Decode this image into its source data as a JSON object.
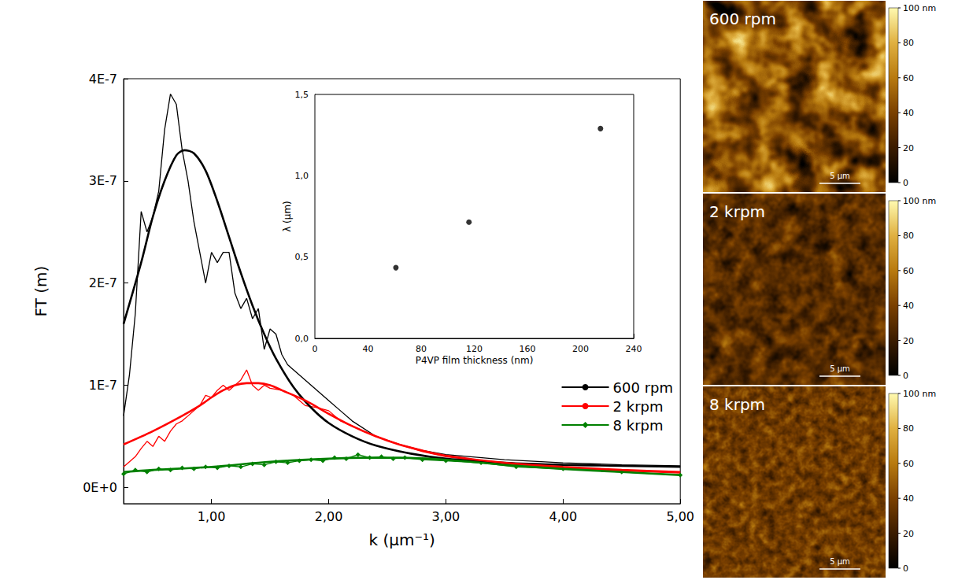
{
  "chart_data": [
    {
      "type": "line",
      "xlabel": "k (μm⁻¹)",
      "ylabel": "FT (m)",
      "xlim": [
        0.25,
        5.0
      ],
      "xticks": [
        {
          "value": 1,
          "label": "1,00"
        },
        {
          "value": 2,
          "label": "2,00"
        },
        {
          "value": 3,
          "label": "3,00"
        },
        {
          "value": 4,
          "label": "4,00"
        },
        {
          "value": 5,
          "label": "5,00"
        }
      ],
      "ylim": [
        -1.6e-08,
        4e-07
      ],
      "yticks": [
        {
          "value": 0,
          "label": "0E+0"
        },
        {
          "value": 1e-07,
          "label": "1E-7"
        },
        {
          "value": 2e-07,
          "label": "2E-7"
        },
        {
          "value": 3e-07,
          "label": "3E-7"
        },
        {
          "value": 4e-07,
          "label": "4E-7"
        }
      ],
      "grid": false,
      "legend": "lower right",
      "series": [
        {
          "name": "600 rpm",
          "color": "#000000",
          "marker": "none",
          "x": [
            0.25,
            0.3,
            0.35,
            0.4,
            0.45,
            0.5,
            0.55,
            0.6,
            0.65,
            0.7,
            0.75,
            0.8,
            0.85,
            0.9,
            0.95,
            1.0,
            1.05,
            1.1,
            1.15,
            1.2,
            1.25,
            1.3,
            1.35,
            1.4,
            1.45,
            1.5,
            1.55,
            1.6,
            1.65,
            1.7,
            1.75,
            1.8,
            1.85,
            1.9,
            2.0,
            2.1,
            2.2,
            2.4,
            2.6,
            2.8,
            3.0,
            3.5,
            4.0,
            4.5,
            5.0
          ],
          "values": [
            7e-08,
            1.1e-07,
            1.7e-07,
            2.7e-07,
            2.5e-07,
            2.65e-07,
            2.9e-07,
            3.5e-07,
            3.85e-07,
            3.75e-07,
            3.3e-07,
            3e-07,
            2.6e-07,
            2.3e-07,
            2e-07,
            2.3e-07,
            2.2e-07,
            2.3e-07,
            2.3e-07,
            1.9e-07,
            1.75e-07,
            1.85e-07,
            1.65e-07,
            1.75e-07,
            1.35e-07,
            1.55e-07,
            1.5e-07,
            1.3e-07,
            1.2e-07,
            1.15e-07,
            1.1e-07,
            1.05e-07,
            1e-07,
            9.5e-08,
            8.5e-08,
            7.5e-08,
            6.5e-08,
            5e-08,
            4.2e-08,
            3.6e-08,
            3.2e-08,
            2.7e-08,
            2.4e-08,
            2.2e-08,
            2.1e-08
          ],
          "fit_x": [
            0.25,
            0.4,
            0.5,
            0.6,
            0.7,
            0.77,
            0.85,
            0.95,
            1.05,
            1.15,
            1.25,
            1.35,
            1.45,
            1.55,
            1.7,
            1.85,
            2.0,
            2.2,
            2.4,
            2.7,
            3.0,
            3.5,
            4.0,
            4.5,
            5.0
          ],
          "fit_values": [
            1.6e-07,
            2.2e-07,
            2.65e-07,
            3e-07,
            3.25e-07,
            3.3e-07,
            3.27e-07,
            3.1e-07,
            2.8e-07,
            2.45e-07,
            2.1e-07,
            1.78e-07,
            1.5e-07,
            1.26e-07,
            9.8e-08,
            7.8e-08,
            6.3e-08,
            5e-08,
            4.1e-08,
            3.3e-08,
            2.8e-08,
            2.4e-08,
            2.2e-08,
            2.1e-08,
            2e-08
          ]
        },
        {
          "name": "2 krpm",
          "color": "#ff0000",
          "marker": "none",
          "x": [
            0.25,
            0.3,
            0.35,
            0.4,
            0.45,
            0.5,
            0.55,
            0.6,
            0.65,
            0.7,
            0.75,
            0.8,
            0.85,
            0.9,
            0.95,
            1.0,
            1.05,
            1.1,
            1.15,
            1.2,
            1.25,
            1.3,
            1.35,
            1.4,
            1.45,
            1.5,
            1.6,
            1.7,
            1.8,
            1.9,
            2.0,
            2.1,
            2.2,
            2.4,
            2.6,
            2.8,
            3.0,
            3.5,
            4.0,
            4.5,
            5.0
          ],
          "values": [
            2e-08,
            2.5e-08,
            3e-08,
            3.8e-08,
            4.5e-08,
            4e-08,
            5e-08,
            4.5e-08,
            5.5e-08,
            6.2e-08,
            6.5e-08,
            7e-08,
            7.5e-08,
            8e-08,
            9e-08,
            8.8e-08,
            9.5e-08,
            1e-07,
            9.5e-08,
            1e-07,
            1.05e-07,
            1.15e-07,
            1e-07,
            9.5e-08,
            1e-07,
            9.7e-08,
            9.5e-08,
            9e-08,
            8e-08,
            7.8e-08,
            7.5e-08,
            6.5e-08,
            6e-08,
            5e-08,
            4.2e-08,
            3.5e-08,
            3e-08,
            2.3e-08,
            1.9e-08,
            1.6e-08,
            1.4e-08
          ],
          "fit_x": [
            0.25,
            0.5,
            0.75,
            0.9,
            1.0,
            1.1,
            1.2,
            1.3,
            1.4,
            1.5,
            1.6,
            1.8,
            2.0,
            2.2,
            2.4,
            2.6,
            2.8,
            3.0,
            3.5,
            4.0,
            4.5,
            5.0
          ],
          "fit_values": [
            4.2e-08,
            5.5e-08,
            7e-08,
            8e-08,
            8.8e-08,
            9.5e-08,
            1e-07,
            1.02e-07,
            1.02e-07,
            1e-07,
            9.5e-08,
            8.5e-08,
            7.2e-08,
            6e-08,
            5e-08,
            4.2e-08,
            3.6e-08,
            3.1e-08,
            2.4e-08,
            2e-08,
            1.7e-08,
            1.5e-08
          ]
        },
        {
          "name": "8 krpm",
          "color": "#008000",
          "marker": "diamond",
          "x": [
            0.25,
            0.35,
            0.45,
            0.55,
            0.65,
            0.75,
            0.85,
            0.95,
            1.05,
            1.15,
            1.25,
            1.35,
            1.45,
            1.55,
            1.65,
            1.75,
            1.85,
            1.95,
            2.05,
            2.15,
            2.25,
            2.35,
            2.45,
            2.55,
            2.65,
            2.8,
            3.0,
            3.3,
            3.6,
            4.0,
            4.5,
            5.0
          ],
          "values": [
            1.3e-08,
            1.7e-08,
            1.5e-08,
            1.8e-08,
            1.7e-08,
            1.9e-08,
            1.8e-08,
            2e-08,
            1.9e-08,
            2.1e-08,
            2e-08,
            2.3e-08,
            2.2e-08,
            2.5e-08,
            2.4e-08,
            2.6e-08,
            2.7e-08,
            2.6e-08,
            2.9e-08,
            2.8e-08,
            3.2e-08,
            2.9e-08,
            3e-08,
            2.8e-08,
            2.9e-08,
            2.7e-08,
            2.6e-08,
            2.4e-08,
            2e-08,
            1.8e-08,
            1.5e-08,
            1.2e-08
          ],
          "fit_x": [
            0.25,
            0.5,
            1.0,
            1.5,
            2.0,
            2.3,
            2.6,
            3.0,
            3.5,
            4.0,
            4.5,
            5.0
          ],
          "fit_values": [
            1.5e-08,
            1.7e-08,
            2e-08,
            2.5e-08,
            2.8e-08,
            2.9e-08,
            2.9e-08,
            2.7e-08,
            2.2e-08,
            1.8e-08,
            1.5e-08,
            1.2e-08
          ]
        }
      ]
    },
    {
      "type": "scatter",
      "xlabel": "P4VP film thickness (nm)",
      "ylabel": "λ (μm)",
      "xlim": [
        0,
        240
      ],
      "xticks": [
        0,
        40,
        80,
        120,
        160,
        200,
        240
      ],
      "ylim": [
        0,
        1.5
      ],
      "yticks": [
        {
          "value": 0,
          "label": "0,0"
        },
        {
          "value": 0.5,
          "label": "0,5"
        },
        {
          "value": 1.0,
          "label": "1,0"
        },
        {
          "value": 1.5,
          "label": "1,5"
        }
      ],
      "grid": false,
      "color": "#000000",
      "marker": "circle",
      "x": [
        61,
        116,
        215
      ],
      "values": [
        0.435,
        0.715,
        1.29
      ]
    }
  ],
  "images": [
    {
      "label": "600 rpm",
      "scale_bar": "5 µm",
      "colorbar_range": [
        0,
        100
      ],
      "colorbar_ticks": [
        0,
        20,
        40,
        60,
        80,
        {
          "value": 100,
          "label": "100 nm"
        }
      ]
    },
    {
      "label": "2 krpm",
      "scale_bar": "5 µm",
      "colorbar_range": [
        0,
        100
      ],
      "colorbar_ticks": [
        0,
        20,
        40,
        60,
        80,
        {
          "value": 100,
          "label": "100 nm"
        }
      ]
    },
    {
      "label": "8 krpm",
      "scale_bar": "5 µm",
      "colorbar_range": [
        0,
        100
      ],
      "colorbar_ticks": [
        0,
        20,
        40,
        60,
        80,
        {
          "value": 100,
          "label": "100 nm"
        }
      ]
    }
  ]
}
